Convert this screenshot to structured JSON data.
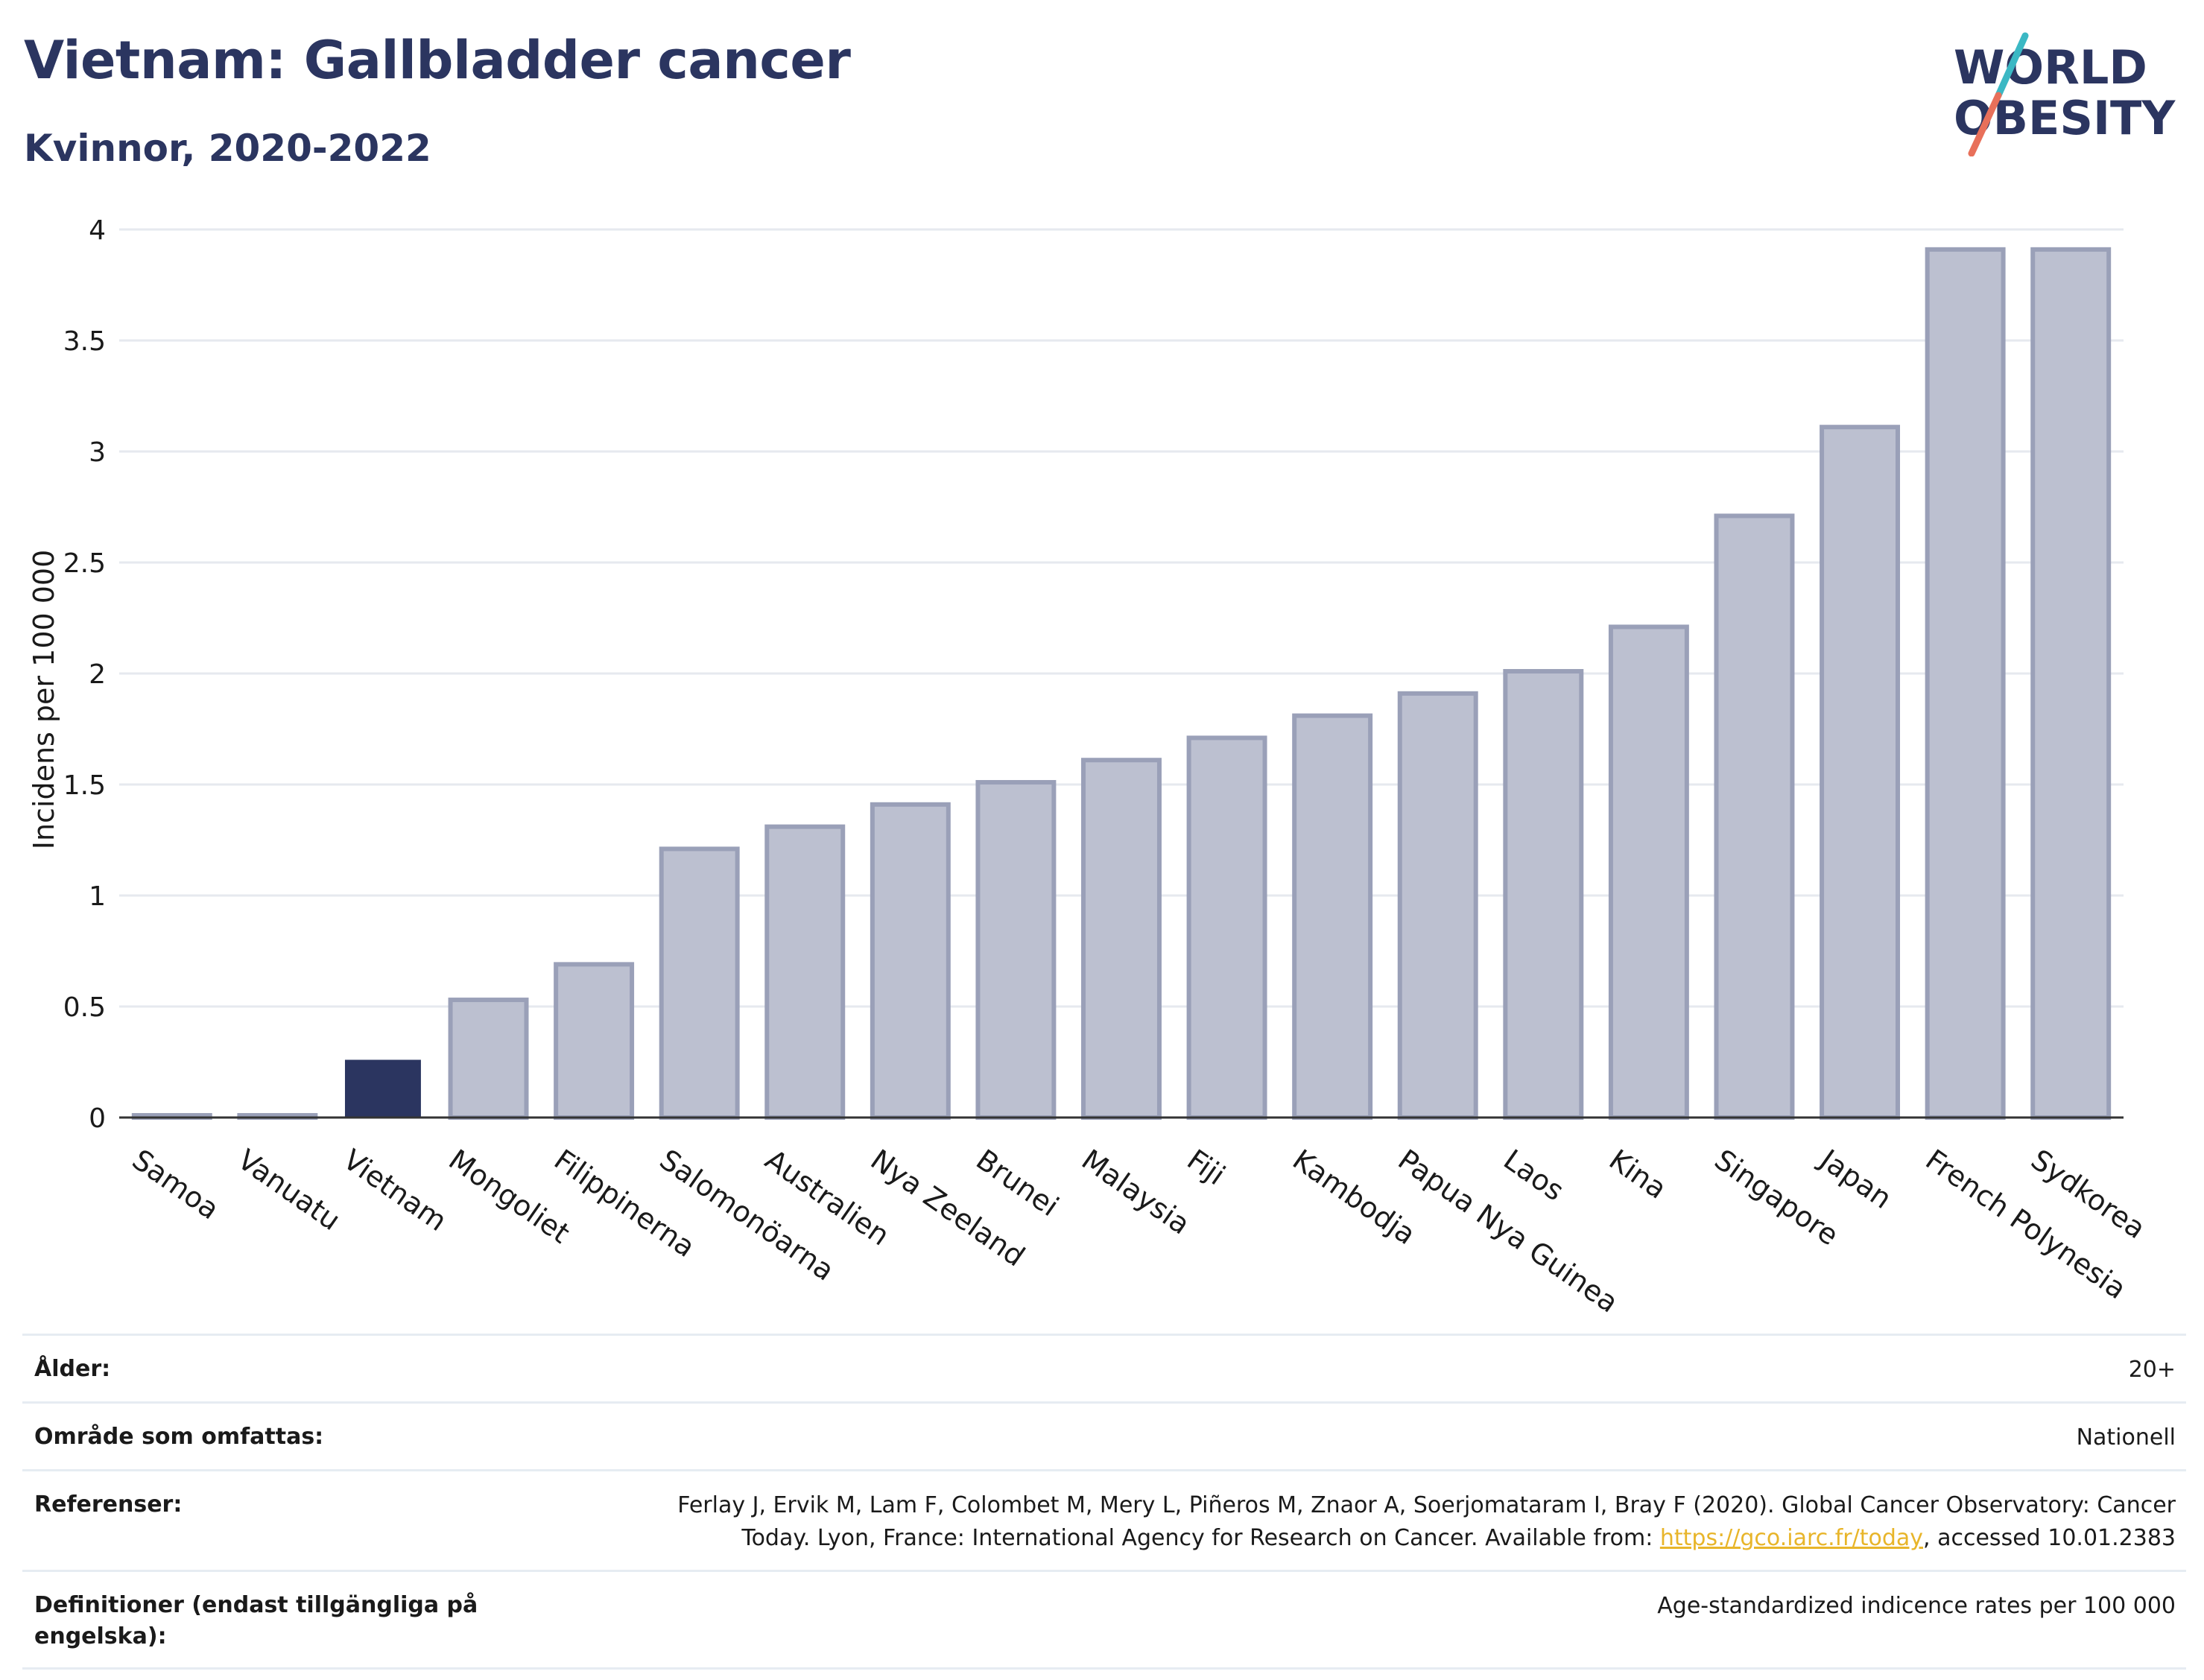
{
  "header": {
    "title": "Vietnam: Gallbladder cancer",
    "subtitle": "Kvinnor, 2020-2022"
  },
  "logo": {
    "line1": "WORLD",
    "line2": "OBESITY",
    "colors": {
      "text": "#2b3560",
      "slash_top": "#3bb8c4",
      "slash_bottom": "#e8705a"
    }
  },
  "colors": {
    "highlight_bar": "#2b3560",
    "other_bar_fill": "#bcc0d0",
    "other_bar_stroke": "#9aa0b8",
    "grid": "#e6e9ef",
    "axis": "#333333"
  },
  "chart_data": {
    "type": "bar",
    "ylabel": "Incidens per 100 000",
    "ylim": [
      0,
      4
    ],
    "yticks": [
      "0",
      "0.5",
      "1",
      "1.5",
      "2",
      "2.5",
      "3",
      "3.5",
      "4"
    ],
    "grid": true,
    "highlight": "Vietnam",
    "categories": [
      "Samoa",
      "Vanuatu",
      "Vietnam",
      "Mongoliet",
      "Filippinerna",
      "Salomonöarna",
      "Australien",
      "Nya Zeeland",
      "Brunei",
      "Malaysia",
      "Fiji",
      "Kambodja",
      "Papua Nya Guinea",
      "Laos",
      "Kina",
      "Singapore",
      "Japan",
      "French Polynesia",
      "Sydkorea"
    ],
    "values": [
      0.01,
      0.01,
      0.26,
      0.53,
      0.69,
      1.21,
      1.31,
      1.41,
      1.51,
      1.61,
      1.71,
      1.81,
      1.91,
      2.01,
      2.21,
      2.71,
      3.11,
      3.91,
      3.91
    ]
  },
  "info": {
    "age_label": "Ålder:",
    "age_value": "20+",
    "area_label": "Område som omfattas:",
    "area_value": "Nationell",
    "ref_label": "Referenser:",
    "ref_line1": "Ferlay J, Ervik M, Lam F, Colombet M, Mery L, Piñeros M, Znaor A, Soerjomataram I, Bray F (2020). Global Cancer Observatory: Cancer",
    "ref_line2_pre": "Today. Lyon, France: International Agency for Research on Cancer. Available from: ",
    "ref_link": "https://gco.iarc.fr/today",
    "ref_line2_post": ", accessed 10.01.2383",
    "def_label": "Definitioner (endast tillgängliga på engelska):",
    "def_value": "Age-standardized indicence rates per 100 000"
  }
}
